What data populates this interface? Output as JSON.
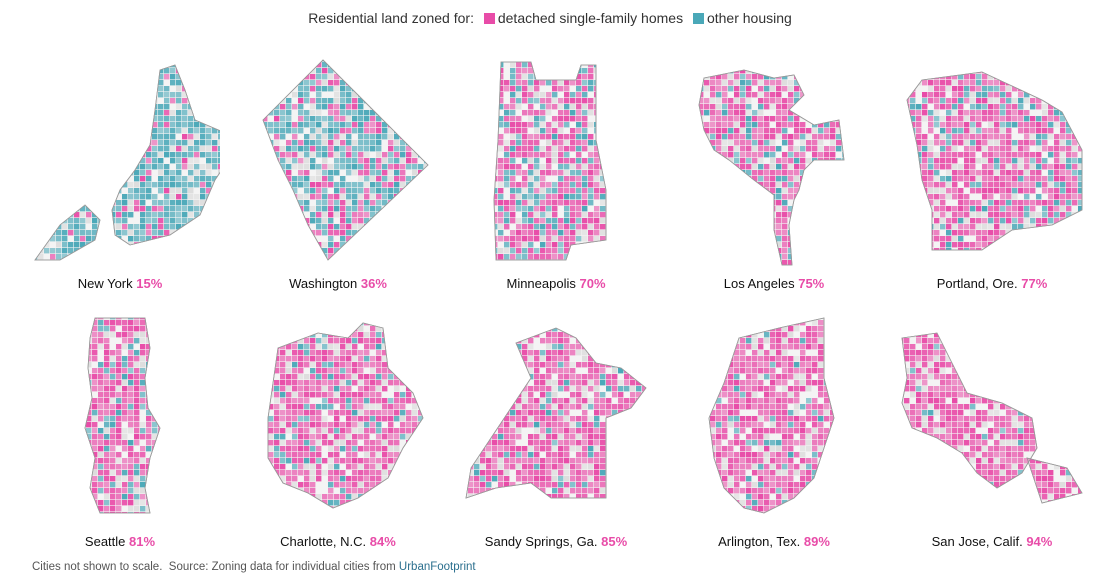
{
  "legend": {
    "label": "Residential land zoned for:",
    "items": [
      {
        "label": "detached single-family homes",
        "color": "#e84ca8"
      },
      {
        "label": "other housing",
        "color": "#4aa8b8"
      }
    ]
  },
  "colors": {
    "single_family": "#e84ca8",
    "other": "#4aa8b8",
    "nonres": "#dcdcdc",
    "outline": "#9a9a9a"
  },
  "cities": [
    {
      "name": "New York",
      "pct": "15%",
      "share": 0.15
    },
    {
      "name": "Washington",
      "pct": "36%",
      "share": 0.36
    },
    {
      "name": "Minneapolis",
      "pct": "70%",
      "share": 0.7
    },
    {
      "name": "Los Angeles",
      "pct": "75%",
      "share": 0.75
    },
    {
      "name": "Portland, Ore.",
      "pct": "77%",
      "share": 0.77
    },
    {
      "name": "Seattle",
      "pct": "81%",
      "share": 0.81
    },
    {
      "name": "Charlotte, N.C.",
      "pct": "84%",
      "share": 0.84
    },
    {
      "name": "Sandy Springs, Ga.",
      "pct": "85%",
      "share": 0.85
    },
    {
      "name": "Arlington, Tex.",
      "pct": "89%",
      "share": 0.89
    },
    {
      "name": "San Jose, Calif.",
      "pct": "94%",
      "share": 0.94
    }
  ],
  "footer": {
    "note": "Cities not shown to scale.",
    "source": "Source: Zoning data for individual cities from",
    "link_text": "UrbanFootprint"
  }
}
